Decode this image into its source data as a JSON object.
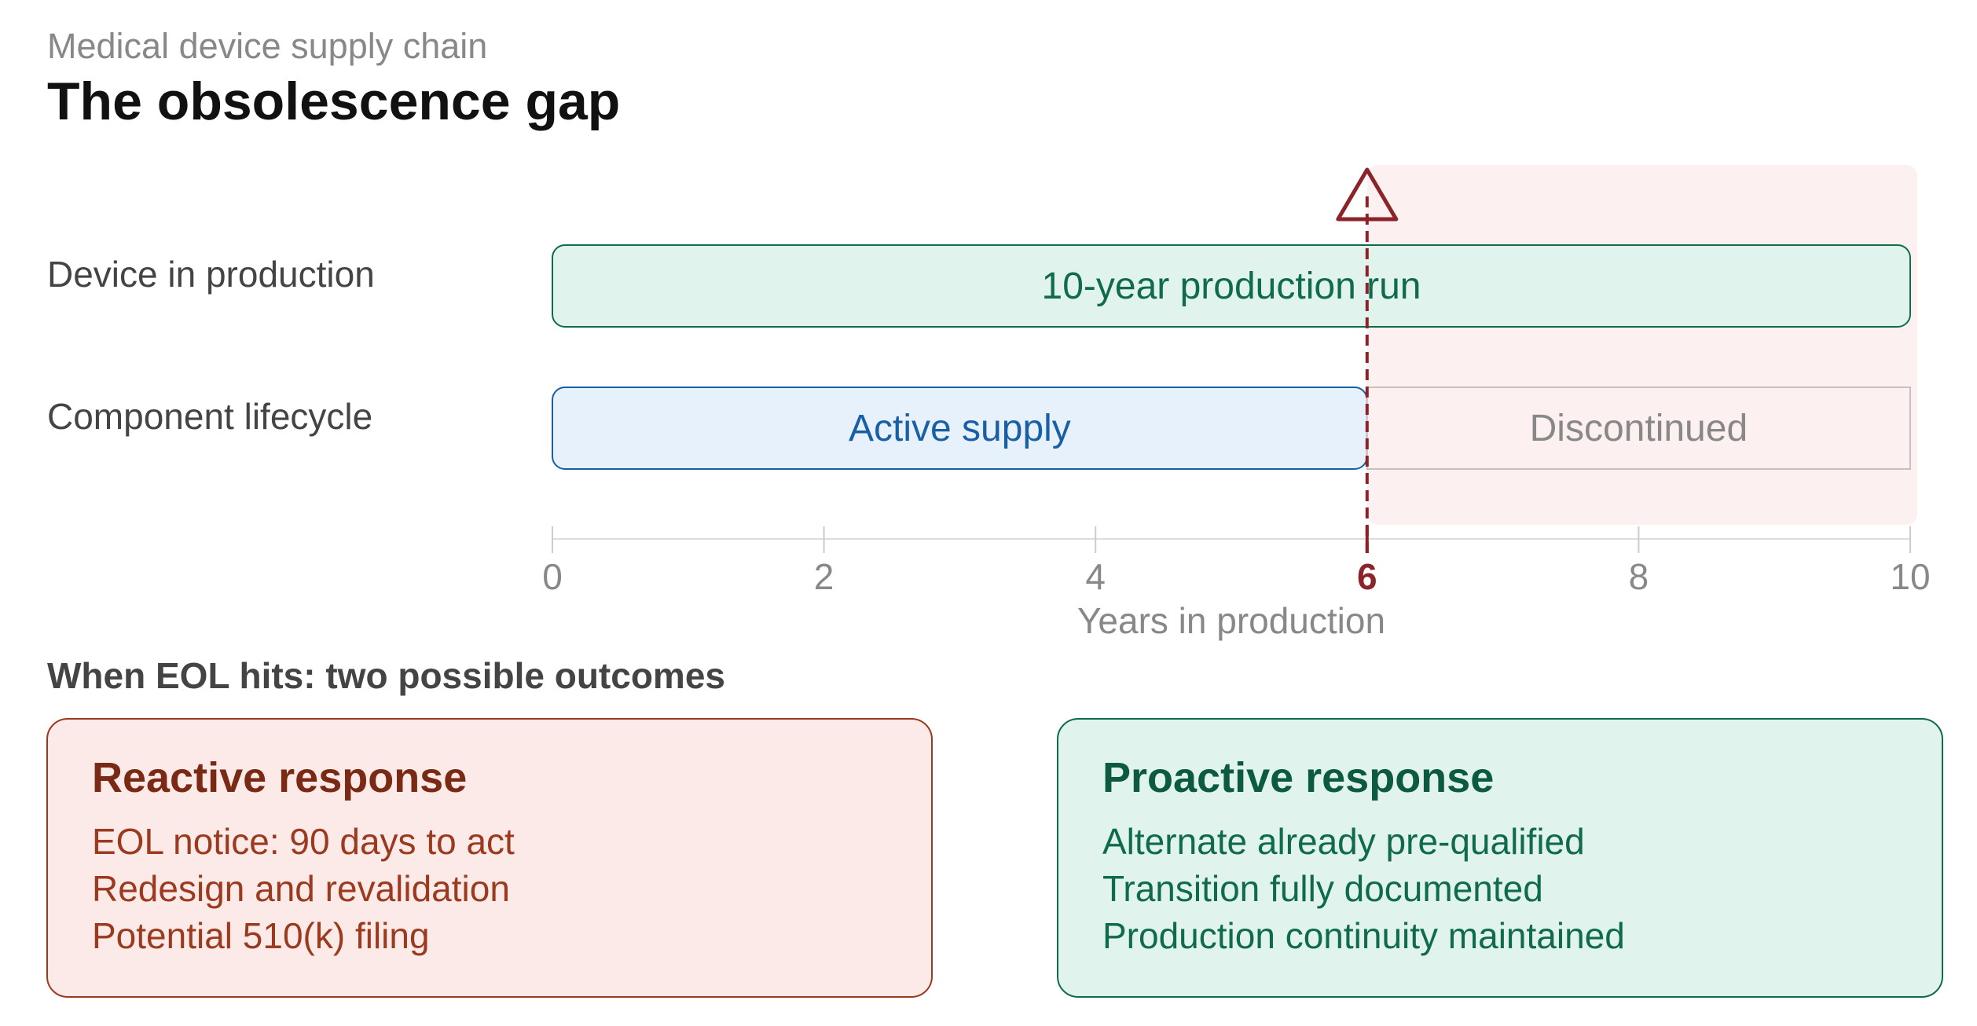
{
  "header": {
    "subtitle": "Medical device supply chain",
    "title": "The obsolescence gap"
  },
  "timeline": {
    "rows": [
      {
        "label": "Device in production"
      },
      {
        "label": "Component lifecycle"
      }
    ],
    "bars": {
      "production": {
        "label": "10-year production run",
        "start": 0,
        "end": 10
      },
      "active": {
        "label": "Active supply",
        "start": 0,
        "end": 6
      },
      "discontinued": {
        "label": "Discontinued",
        "start": 6,
        "end": 10
      }
    },
    "axis": {
      "min": 0,
      "max": 10,
      "ticks": [
        "0",
        "2",
        "4",
        "6",
        "8",
        "10"
      ],
      "tick_values": [
        0,
        2,
        4,
        6,
        8,
        10
      ],
      "label": "Years in production"
    },
    "eol_year": 6,
    "warning_icon": "warning-triangle-icon"
  },
  "outcomes": {
    "heading": "When EOL hits: two possible outcomes",
    "reactive": {
      "title": "Reactive response",
      "items": [
        "EOL notice: 90 days to act",
        "Redesign and revalidation",
        "Potential 510(k) filing"
      ]
    },
    "proactive": {
      "title": "Proactive response",
      "items": [
        "Alternate already pre-qualified",
        "Transition fully documented",
        "Production continuity maintained"
      ]
    }
  },
  "colors": {
    "green_fill": "#e0f3ec",
    "green_stroke": "#106b4c",
    "blue_fill": "#e6f1fb",
    "blue_stroke": "#185fa5",
    "red_zone": "#fcf0f0",
    "red_accent": "#8b2328",
    "reactive_fill": "#fbeae7",
    "reactive_stroke": "#9b3a1f",
    "gray_text": "#888888"
  }
}
